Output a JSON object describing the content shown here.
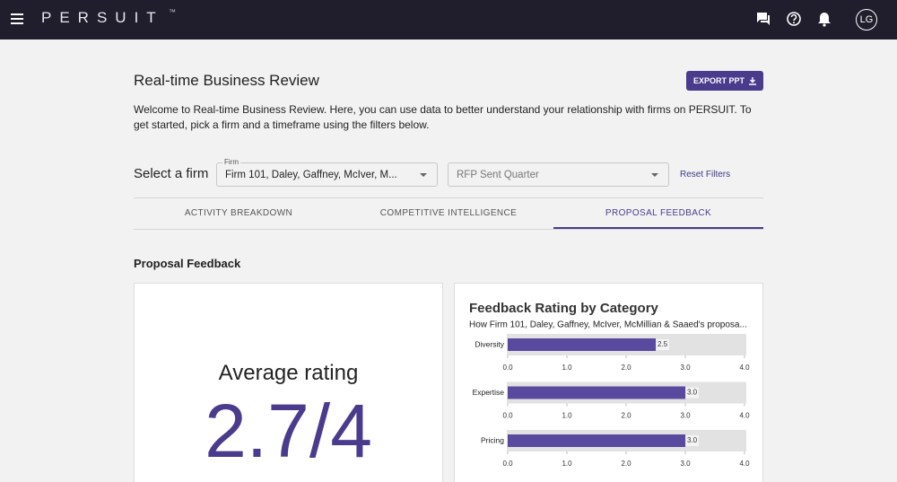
{
  "header": {
    "logo": "PERSUIT",
    "trademark": "™",
    "avatar": "LG"
  },
  "page": {
    "title": "Real-time Business Review",
    "export_button": "EXPORT PPT",
    "intro": "Welcome to Real-time Business Review. Here, you can use data to better understand your relationship with firms on PERSUIT. To get started, pick a firm and a timeframe using the filters below."
  },
  "filters": {
    "label": "Select a firm",
    "firm_label": "Firm",
    "firm_value": "Firm 101, Daley, Gaffney, McIver, M...",
    "quarter_placeholder": "RFP Sent Quarter",
    "reset": "Reset Filters"
  },
  "tabs": [
    "ACTIVITY BREAKDOWN",
    "COMPETITIVE INTELLIGENCE",
    "PROPOSAL FEEDBACK"
  ],
  "section_title": "Proposal Feedback",
  "average_card": {
    "label": "Average rating",
    "value": "2.7/4"
  },
  "chart_data": {
    "type": "bar",
    "title": "Feedback Rating by Category",
    "subtitle": "How Firm 101, Daley, Gaffney, McIver, McMillian & Saaed's proposa...",
    "categories": [
      "Diversity",
      "Expertise",
      "Pricing"
    ],
    "values": [
      2.5,
      3,
      3
    ],
    "value_labels": [
      "2.5",
      "3.0",
      "3.0"
    ],
    "color": "#5a4a9f",
    "xlim": [
      0,
      4
    ],
    "xticks": [
      {
        "value": 0,
        "label": "0.0"
      },
      {
        "value": 1,
        "label": "1.0"
      },
      {
        "value": 2,
        "label": "2.0"
      },
      {
        "value": 3,
        "label": "3.0"
      },
      {
        "value": 4,
        "label": "4.0"
      }
    ]
  }
}
